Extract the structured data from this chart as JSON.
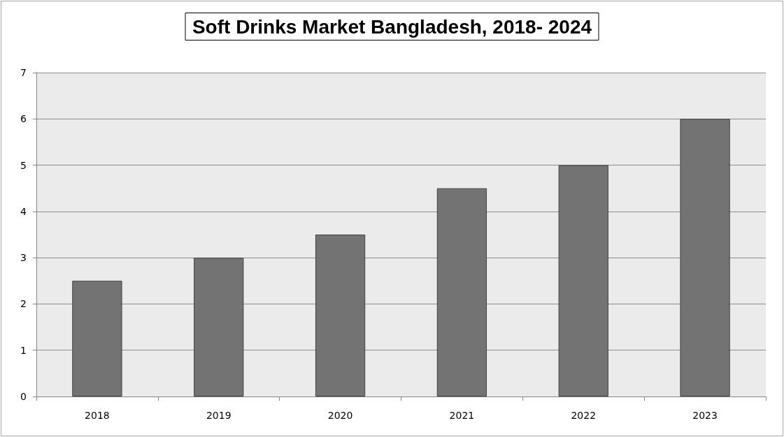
{
  "chart_data": {
    "type": "bar",
    "title": "Soft Drinks Market Bangladesh, 2018- 2024",
    "categories": [
      "2018",
      "2019",
      "2020",
      "2021",
      "2022",
      "2023"
    ],
    "values": [
      2.5,
      3,
      3.5,
      4.5,
      5,
      6
    ],
    "color": "#737373",
    "ylim": [
      0,
      7
    ],
    "yticks": [
      0,
      1,
      2,
      3,
      4,
      5,
      6,
      7
    ],
    "grid": "y"
  }
}
